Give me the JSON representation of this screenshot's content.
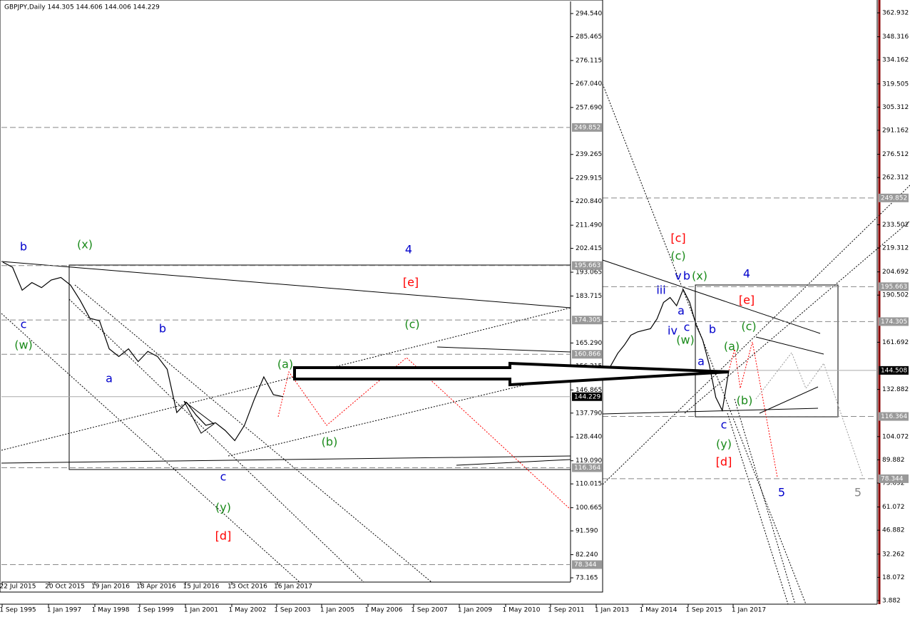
{
  "chart_data": [
    {
      "type": "line",
      "title": "GBPJPY,Daily  144.305 144.606 144.006 144.229",
      "ylim": [
        71.49,
        298.73
      ],
      "yticks": [
        {
          "value": 294.54,
          "label": "294.540"
        },
        285.465,
        276.115,
        {
          "value": 267.04,
          "label": "267.040"
        },
        {
          "value": 257.69,
          "label": "257.690"
        },
        239.265,
        229.915,
        {
          "value": 220.84,
          "label": "220.840"
        },
        {
          "value": 211.49,
          "label": "211.490"
        },
        202.415,
        193.065,
        183.715,
        {
          "value": 165.29,
          "label": "165.290"
        },
        156.215,
        146.865,
        {
          "value": 137.79,
          "label": "137.790"
        },
        {
          "value": 128.44,
          "label": "128.440"
        },
        {
          "value": 119.09,
          "label": "119.090"
        },
        110.015,
        100.665,
        {
          "value": 91.59,
          "label": "91.590"
        },
        {
          "value": 82.24,
          "label": "82.240"
        },
        73.165
      ],
      "date_labels": [
        "22 Jul 2015",
        "20 Oct 2015",
        "19 Jan 2016",
        "18 Apr 2016",
        "15 Jul 2016",
        "13 Oct 2016",
        "16 Jan 2017"
      ],
      "values": [
        197,
        195,
        186,
        189,
        187,
        190,
        191,
        188,
        182,
        175,
        174,
        163,
        160,
        163,
        158,
        162,
        160,
        155,
        138,
        142,
        137,
        133,
        134,
        131,
        127,
        133,
        143,
        152,
        145,
        144.229
      ],
      "color": "#000000",
      "levels": [
        249.852,
        195.663,
        174.305,
        160.866,
        116.364,
        78.344
      ],
      "current_price": 144.229,
      "annotations": [
        {
          "text": "b",
          "color": "#0000cc"
        },
        {
          "text": "(x)",
          "color": "#1a8a1a"
        },
        {
          "text": "4",
          "color": "#0000cc"
        },
        {
          "text": "[e]",
          "color": "#ff0000"
        },
        {
          "text": "c",
          "color": "#0000cc"
        },
        {
          "text": "(c)",
          "color": "#1a8a1a"
        },
        {
          "text": "b",
          "color": "#0000cc"
        },
        {
          "text": "(w)",
          "color": "#1a8a1a"
        },
        {
          "text": "(a)",
          "color": "#1a8a1a"
        },
        {
          "text": "a",
          "color": "#0000cc"
        },
        {
          "text": "(b)",
          "color": "#1a8a1a"
        },
        {
          "text": "c",
          "color": "#0000cc"
        },
        {
          "text": "(y)",
          "color": "#1a8a1a"
        },
        {
          "text": "[d]",
          "color": "#ff0000"
        }
      ]
    },
    {
      "type": "line",
      "ylim": [
        1.706,
        370.766
      ],
      "yticks": [
        362.932,
        348.316,
        334.162,
        319.505,
        305.312,
        291.162,
        276.512,
        262.312,
        233.502,
        219.312,
        204.692,
        190.502,
        161.692,
        132.882,
        104.072,
        89.882,
        75.692,
        61.072,
        46.882,
        32.262,
        18.072,
        3.882
      ],
      "date_labels": [
        "1 Sep 1995",
        "1 Jan 1997",
        "1 May 1998",
        "1 Sep 1999",
        "1 Jan 2001",
        "1 May 2002",
        "1 Sep 2003",
        "1 Jan 2005",
        "1 May 2006",
        "1 Sep 2007",
        "1 Jan 2009",
        "1 May 2010",
        "1 Sep 2011",
        "1 Jan 2013",
        "1 May 2014",
        "1 Sep 2015",
        "1 Jan 2017"
      ],
      "values": [
        140,
        148,
        155,
        160,
        166,
        168,
        169,
        170,
        176,
        186,
        189,
        184,
        194,
        186,
        172,
        163,
        148,
        128,
        120,
        144.508
      ],
      "color": "#000000",
      "levels": [
        249.852,
        195.663,
        174.305,
        116.364,
        78.344
      ],
      "current_price": 144.508,
      "annotations": [
        {
          "text": "[c]",
          "color": "#ff0000"
        },
        {
          "text": "(c)",
          "color": "#1a8a1a"
        },
        {
          "text": "v",
          "color": "#0000cc"
        },
        {
          "text": "b",
          "color": "#0000cc"
        },
        {
          "text": "(x)",
          "color": "#1a8a1a"
        },
        {
          "text": "4",
          "color": "#0000cc"
        },
        {
          "text": "iii",
          "color": "#0000cc"
        },
        {
          "text": "[e]",
          "color": "#ff0000"
        },
        {
          "text": "a",
          "color": "#0000cc"
        },
        {
          "text": "c",
          "color": "#0000cc"
        },
        {
          "text": "iv",
          "color": "#0000cc"
        },
        {
          "text": "(c)",
          "color": "#1a8a1a"
        },
        {
          "text": "b",
          "color": "#0000cc"
        },
        {
          "text": "(w)",
          "color": "#1a8a1a"
        },
        {
          "text": "(a)",
          "color": "#1a8a1a"
        },
        {
          "text": "a",
          "color": "#0000cc"
        },
        {
          "text": "(b)",
          "color": "#1a8a1a"
        },
        {
          "text": "c",
          "color": "#0000cc"
        },
        {
          "text": "(y)",
          "color": "#1a8a1a"
        },
        {
          "text": "[d]",
          "color": "#ff0000"
        },
        {
          "text": "5",
          "color": "#0000cc"
        },
        {
          "text": "5",
          "color": "#888888"
        }
      ]
    }
  ]
}
